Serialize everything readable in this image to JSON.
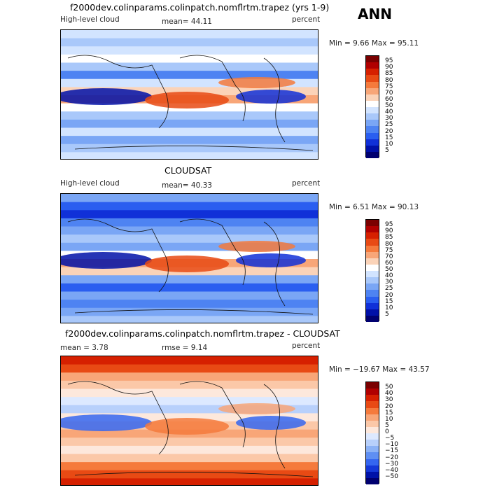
{
  "season": "ANN",
  "panels": [
    {
      "id": "model",
      "title": "f2000dev.colinparams.colinpatch.nomflrtm.trapez (yrs 1-9)",
      "left_label": "High-level cloud",
      "center_label": "mean=  44.11",
      "right_label": "percent",
      "minmax": "Min =   9.66 Max =  95.11",
      "colorbar_ticks": [
        "95",
        "90",
        "85",
        "80",
        "75",
        "70",
        "60",
        "50",
        "40",
        "30",
        "25",
        "20",
        "15",
        "10",
        "5"
      ],
      "colorbar_colors": [
        "#7a0000",
        "#b00000",
        "#d62000",
        "#e84a14",
        "#f57a3c",
        "#f8a678",
        "#fbd3b8",
        "#ffffff",
        "#d2e4ff",
        "#a9c8fa",
        "#7aa6f5",
        "#4e83f2",
        "#2a5ef0",
        "#1030d8",
        "#0010a8",
        "#000070"
      ]
    },
    {
      "id": "obs",
      "title": "CLOUDSAT",
      "left_label": "High-level cloud",
      "center_label": "mean=  40.33",
      "right_label": "percent",
      "minmax": "Min =   6.51 Max =  90.13",
      "colorbar_ticks": [
        "95",
        "90",
        "85",
        "80",
        "75",
        "70",
        "60",
        "50",
        "40",
        "30",
        "25",
        "20",
        "15",
        "10",
        "5"
      ],
      "colorbar_colors": [
        "#7a0000",
        "#b00000",
        "#d62000",
        "#e84a14",
        "#f57a3c",
        "#f8a678",
        "#fbd3b8",
        "#ffffff",
        "#d2e4ff",
        "#a9c8fa",
        "#7aa6f5",
        "#4e83f2",
        "#2a5ef0",
        "#1030d8",
        "#0010a8",
        "#000070"
      ]
    },
    {
      "id": "diff",
      "title": "f2000dev.colinparams.colinpatch.nomflrtm.trapez - CLOUDSAT",
      "left_label": "mean =   3.78",
      "center_label": "rmse =   9.14",
      "right_label": "percent",
      "minmax": "Min = −19.67 Max =  43.57",
      "colorbar_ticks": [
        "50",
        "40",
        "30",
        "20",
        "15",
        "10",
        "5",
        "0",
        "−5",
        "−10",
        "−15",
        "−20",
        "−30",
        "−40",
        "−50"
      ],
      "colorbar_colors": [
        "#7a0000",
        "#b00000",
        "#d62000",
        "#e84a14",
        "#f57a3c",
        "#f8a678",
        "#fbc8a8",
        "#fde8dc",
        "#dde9ff",
        "#b8d0fb",
        "#8cb2f6",
        "#5f8ff3",
        "#3566f0",
        "#1538d8",
        "#0012a8",
        "#000070"
      ]
    }
  ]
}
